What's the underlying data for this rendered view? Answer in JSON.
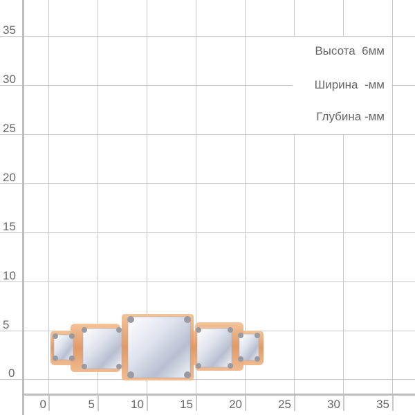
{
  "y_axis": {
    "ticks": [
      "35",
      "30",
      "25",
      "20",
      "15",
      "10",
      "5",
      "0"
    ]
  },
  "x_axis": {
    "ticks": [
      "0",
      "5",
      "10",
      "15",
      "20",
      "25",
      "30",
      "35"
    ]
  },
  "dimensions": {
    "height_label": "Высота  6мм",
    "width_label": "Ширина  -мм",
    "depth_label": "Глубина -мм"
  },
  "colors": {
    "grid": "#c8c8c8",
    "axis": "#bdbdbd",
    "text": "#666666",
    "gold": "#e0a070",
    "stone": "#e8ecf4"
  }
}
